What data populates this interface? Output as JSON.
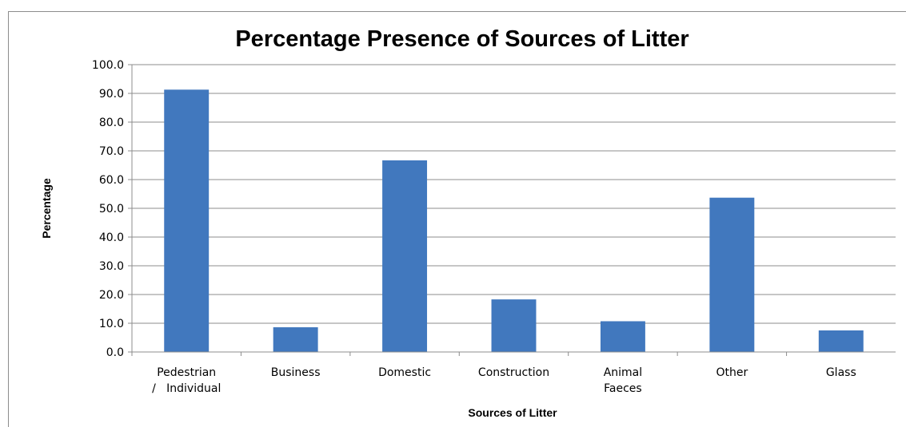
{
  "chart_data": {
    "type": "bar",
    "title": "Percentage Presence of Sources of Litter",
    "xlabel": "Sources of Litter",
    "ylabel": "Percentage",
    "categories": [
      [
        "Pedestrian",
        "/   Individual"
      ],
      [
        "Business"
      ],
      [
        "Domestic"
      ],
      [
        "Construction"
      ],
      [
        "Animal",
        "Faeces"
      ],
      [
        "Other"
      ],
      [
        "Glass"
      ]
    ],
    "values": [
      91.3,
      8.6,
      66.7,
      18.3,
      10.7,
      53.7,
      7.5
    ],
    "ylim": [
      0,
      100
    ],
    "yticks": [
      "0.0",
      "10.0",
      "20.0",
      "30.0",
      "40.0",
      "50.0",
      "60.0",
      "70.0",
      "80.0",
      "90.0",
      "100.0"
    ],
    "grid": true,
    "legend": "none",
    "colors": {
      "bar": "#4178BE",
      "grid": "#8c8c8c",
      "axis": "#8c8c8c"
    }
  }
}
